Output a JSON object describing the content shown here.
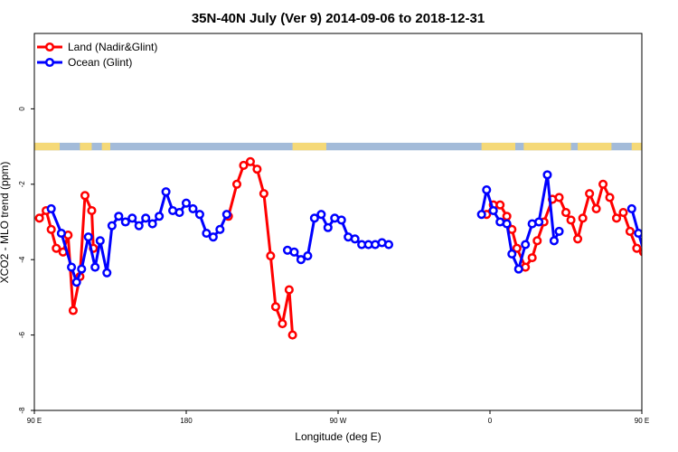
{
  "chart_data": {
    "type": "line",
    "title": "35N-40N July (Ver 9)   2014-09-06 to 2018-12-31",
    "xlabel": "Longitude (deg E)",
    "ylabel": "XCO2 - MLO trend (ppm)",
    "xlim": [
      90,
      450
    ],
    "ylim": [
      -8,
      2
    ],
    "xticks": [
      {
        "value": 90,
        "label": "90 E"
      },
      {
        "value": 180,
        "label": "180"
      },
      {
        "value": 270,
        "label": "90 W"
      },
      {
        "value": 360,
        "label": "0"
      },
      {
        "value": 450,
        "label": "90 E"
      },
      {
        "value": 540,
        "label": "180"
      }
    ],
    "yticks": [
      {
        "value": 0,
        "label": "0"
      },
      {
        "value": -2,
        "label": "-2"
      },
      {
        "value": -4,
        "label": "-4"
      },
      {
        "value": -6,
        "label": "-6"
      },
      {
        "value": -8,
        "label": "-8"
      }
    ],
    "legend_position": "top-left",
    "land_mask": {
      "y_top": -0.9,
      "y_bottom": -1.1,
      "ocean_color": "#a3bbd9",
      "land_color": "#f5d978",
      "land_segments": [
        [
          90,
          105
        ],
        [
          117,
          124
        ],
        [
          130,
          135
        ],
        [
          243,
          263
        ],
        [
          355,
          375
        ],
        [
          380,
          408
        ],
        [
          412,
          432
        ],
        [
          444,
          461
        ],
        [
          477,
          494
        ]
      ]
    },
    "series": [
      {
        "name": "Land (Nadir&Glint)",
        "color": "#ff0000",
        "points": [
          [
            93,
            -2.9
          ],
          [
            97,
            -2.7
          ],
          [
            100,
            -3.2
          ],
          [
            103,
            -3.7
          ],
          [
            107,
            -3.8
          ],
          [
            110,
            -3.35
          ],
          [
            113,
            -5.35
          ],
          [
            117,
            -4.45
          ],
          [
            120,
            -2.3
          ],
          [
            124,
            -2.7
          ],
          [
            125,
            -3.7
          ],
          [
            null,
            null
          ],
          [
            205,
            -2.85
          ],
          [
            210,
            -2.0
          ],
          [
            214,
            -1.5
          ],
          [
            218,
            -1.4
          ],
          [
            222,
            -1.6
          ],
          [
            226,
            -2.25
          ],
          [
            230,
            -3.9
          ],
          [
            233,
            -5.25
          ],
          [
            237,
            -5.7
          ],
          [
            241,
            -4.8
          ],
          [
            243,
            -6.0
          ],
          [
            null,
            null
          ],
          [
            358,
            -2.8
          ],
          [
            362,
            -2.55
          ],
          [
            366,
            -2.55
          ],
          [
            370,
            -2.85
          ],
          [
            373,
            -3.2
          ],
          [
            376,
            -3.7
          ],
          [
            381,
            -4.2
          ],
          [
            385,
            -3.95
          ],
          [
            388,
            -3.5
          ],
          [
            392,
            -3.0
          ],
          [
            397,
            -2.4
          ],
          [
            401,
            -2.35
          ],
          [
            405,
            -2.75
          ],
          [
            408,
            -2.95
          ],
          [
            412,
            -3.45
          ],
          [
            415,
            -2.9
          ],
          [
            419,
            -2.25
          ],
          [
            423,
            -2.65
          ],
          [
            427,
            -2.0
          ],
          [
            431,
            -2.35
          ],
          [
            435,
            -2.9
          ],
          [
            439,
            -2.75
          ],
          [
            443,
            -3.25
          ],
          [
            447,
            -3.7
          ],
          [
            451,
            -3.8
          ],
          [
            455,
            -3.35
          ],
          [
            458,
            -5.35
          ],
          [
            461,
            -4.45
          ],
          [
            465,
            -2.3
          ],
          [
            469,
            -2.7
          ],
          [
            471,
            -3.7
          ]
        ]
      },
      {
        "name": "Ocean (Glint)",
        "color": "#0000ff",
        "points": [
          [
            100,
            -2.65
          ],
          [
            106,
            -3.3
          ],
          [
            112,
            -4.2
          ],
          [
            115,
            -4.6
          ],
          [
            118,
            -4.25
          ],
          [
            122,
            -3.4
          ],
          [
            126,
            -4.2
          ],
          [
            129,
            -3.5
          ],
          [
            133,
            -4.35
          ],
          [
            136,
            -3.1
          ],
          [
            140,
            -2.85
          ],
          [
            144,
            -3.0
          ],
          [
            148,
            -2.9
          ],
          [
            152,
            -3.1
          ],
          [
            156,
            -2.9
          ],
          [
            160,
            -3.05
          ],
          [
            164,
            -2.85
          ],
          [
            168,
            -2.2
          ],
          [
            172,
            -2.7
          ],
          [
            176,
            -2.75
          ],
          [
            180,
            -2.5
          ],
          [
            184,
            -2.65
          ],
          [
            188,
            -2.8
          ],
          [
            192,
            -3.3
          ],
          [
            196,
            -3.4
          ],
          [
            200,
            -3.2
          ],
          [
            204,
            -2.8
          ],
          [
            null,
            null
          ],
          [
            240,
            -3.75
          ],
          [
            244,
            -3.8
          ],
          [
            248,
            -4.0
          ],
          [
            252,
            -3.9
          ],
          [
            256,
            -2.9
          ],
          [
            260,
            -2.8
          ],
          [
            264,
            -3.15
          ],
          [
            268,
            -2.9
          ],
          [
            272,
            -2.95
          ],
          [
            276,
            -3.4
          ],
          [
            280,
            -3.45
          ],
          [
            284,
            -3.6
          ],
          [
            288,
            -3.6
          ],
          [
            292,
            -3.6
          ],
          [
            296,
            -3.55
          ],
          [
            300,
            -3.6
          ],
          [
            null,
            null
          ],
          [
            355,
            -2.8
          ],
          [
            358,
            -2.15
          ],
          [
            362,
            -2.7
          ],
          [
            366,
            -3.0
          ],
          [
            370,
            -3.05
          ],
          [
            373,
            -3.85
          ],
          [
            377,
            -4.25
          ],
          [
            381,
            -3.6
          ],
          [
            385,
            -3.05
          ],
          [
            389,
            -3.0
          ],
          [
            394,
            -1.75
          ],
          [
            398,
            -3.5
          ],
          [
            401,
            -3.25
          ],
          [
            null,
            null
          ],
          [
            444,
            -2.65
          ],
          [
            448,
            -3.3
          ],
          [
            454,
            -4.2
          ],
          [
            457,
            -4.6
          ],
          [
            460,
            -4.25
          ],
          [
            464,
            -3.4
          ],
          [
            468,
            -4.2
          ],
          [
            471,
            -3.5
          ],
          [
            475,
            -4.35
          ],
          [
            478,
            -3.1
          ],
          [
            482,
            -2.85
          ],
          [
            486,
            -3.0
          ],
          [
            490,
            -2.9
          ],
          [
            494,
            -3.1
          ],
          [
            498,
            -2.9
          ]
        ]
      }
    ]
  }
}
